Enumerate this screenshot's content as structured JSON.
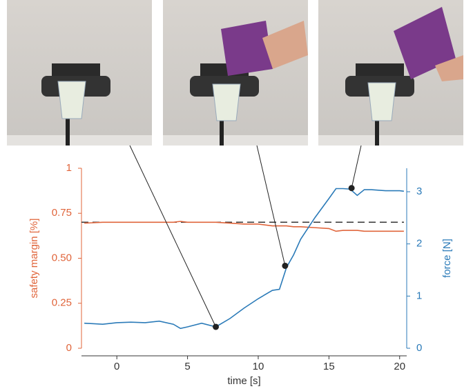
{
  "chart_data": {
    "type": "line",
    "x_label": "time [s]",
    "y_label": "safety margin [%]",
    "y2_label": "force [N]",
    "x": [
      -2.3,
      -1,
      0,
      1,
      2,
      3,
      4,
      4.5,
      5,
      6,
      7,
      8,
      9,
      10,
      11,
      11.5,
      12,
      12.5,
      13,
      14,
      15,
      15.5,
      16,
      16.5,
      17,
      17.5,
      18,
      19,
      20,
      20.3
    ],
    "series": [
      {
        "color": "#e0643a",
        "axis": "y",
        "values": [
          0.695,
          0.7,
          0.7,
          0.7,
          0.7,
          0.7,
          0.7,
          0.705,
          0.7,
          0.7,
          0.7,
          0.695,
          0.69,
          0.69,
          0.68,
          0.68,
          0.68,
          0.675,
          0.675,
          0.67,
          0.665,
          0.65,
          0.655,
          0.655,
          0.655,
          0.65,
          0.65,
          0.65,
          0.65,
          0.65
        ]
      },
      {
        "color": "#2a7ab8",
        "axis": "y2",
        "values": [
          0.48,
          0.46,
          0.49,
          0.5,
          0.49,
          0.52,
          0.46,
          0.38,
          0.41,
          0.48,
          0.41,
          0.57,
          0.77,
          0.95,
          1.11,
          1.13,
          1.55,
          1.79,
          2.09,
          2.5,
          2.87,
          3.06,
          3.06,
          3.05,
          2.93,
          3.04,
          3.04,
          3.02,
          3.02,
          3.01
        ]
      }
    ],
    "reference_line": {
      "value": 0.7,
      "axis": "y",
      "color": "#333333"
    },
    "markers": {
      "x": [
        7,
        11.9,
        16.6
      ],
      "values": [
        0.41,
        1.58,
        3.07
      ],
      "axis": "y2",
      "color": "#222222"
    },
    "xlim": [
      -2.5,
      20.5
    ],
    "xticks": [
      0,
      5,
      10,
      15,
      20
    ],
    "ylim": [
      0,
      1
    ],
    "yticks": [
      0,
      0.25,
      {
        "value": 0.5,
        "label": "0.50"
      },
      0.75,
      1
    ],
    "y2lim": [
      0,
      3.45
    ],
    "y2ticks": [
      0,
      1,
      2,
      3
    ],
    "y_color": "#e0643a",
    "y2_color": "#2a7ab8"
  }
}
